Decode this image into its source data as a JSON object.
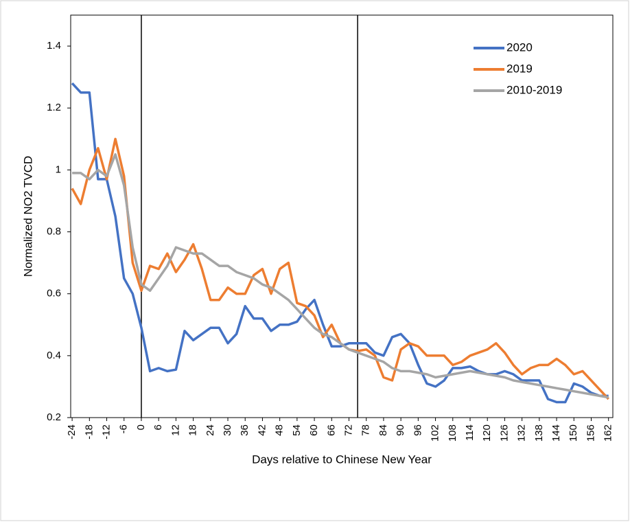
{
  "chart_data": {
    "type": "line",
    "ylabel": "Normalized NO2 TVCD",
    "xlabel": "Days relative to Chinese New Year",
    "x": [
      -24,
      -21,
      -18,
      -15,
      -12,
      -9,
      -6,
      -3,
      0,
      3,
      6,
      9,
      12,
      15,
      18,
      21,
      24,
      27,
      30,
      33,
      36,
      39,
      42,
      45,
      48,
      51,
      54,
      57,
      60,
      63,
      66,
      69,
      72,
      75,
      78,
      81,
      84,
      87,
      90,
      93,
      96,
      99,
      102,
      105,
      108,
      111,
      114,
      117,
      120,
      123,
      126,
      129,
      132,
      135,
      138,
      141,
      144,
      147,
      150,
      153,
      156,
      159,
      162
    ],
    "series": [
      {
        "name": "2020",
        "color": "#4472c4",
        "values": [
          1.28,
          1.25,
          1.25,
          0.97,
          0.97,
          0.85,
          0.65,
          0.6,
          0.49,
          0.35,
          0.36,
          0.35,
          0.355,
          0.48,
          0.45,
          0.47,
          0.49,
          0.49,
          0.44,
          0.47,
          0.56,
          0.52,
          0.52,
          0.48,
          0.5,
          0.5,
          0.51,
          0.55,
          0.58,
          0.5,
          0.43,
          0.43,
          0.44,
          0.44,
          0.44,
          0.41,
          0.4,
          0.46,
          0.47,
          0.44,
          0.37,
          0.31,
          0.3,
          0.32,
          0.36,
          0.36,
          0.365,
          0.35,
          0.34,
          0.34,
          0.35,
          0.34,
          0.32,
          0.32,
          0.32,
          0.26,
          0.25,
          0.25,
          0.31,
          0.3,
          0.28,
          0.27,
          0.27
        ]
      },
      {
        "name": "2019",
        "color": "#ed7d31",
        "values": [
          0.94,
          0.89,
          1.0,
          1.07,
          0.97,
          1.1,
          0.98,
          0.7,
          0.61,
          0.69,
          0.68,
          0.73,
          0.67,
          0.71,
          0.76,
          0.68,
          0.58,
          0.58,
          0.62,
          0.6,
          0.6,
          0.66,
          0.68,
          0.6,
          0.68,
          0.7,
          0.57,
          0.56,
          0.53,
          0.46,
          0.5,
          0.44,
          0.42,
          0.415,
          0.42,
          0.4,
          0.33,
          0.32,
          0.42,
          0.44,
          0.43,
          0.4,
          0.4,
          0.4,
          0.37,
          0.38,
          0.4,
          0.41,
          0.42,
          0.44,
          0.41,
          0.37,
          0.34,
          0.36,
          0.37,
          0.37,
          0.39,
          0.37,
          0.34,
          0.35,
          0.32,
          0.29,
          0.26
        ]
      },
      {
        "name": "2010-2019",
        "color": "#a5a5a5",
        "values": [
          0.99,
          0.99,
          0.97,
          1.0,
          0.98,
          1.05,
          0.95,
          0.75,
          0.63,
          0.61,
          0.65,
          0.69,
          0.75,
          0.74,
          0.73,
          0.73,
          0.71,
          0.69,
          0.69,
          0.67,
          0.66,
          0.65,
          0.63,
          0.62,
          0.6,
          0.58,
          0.55,
          0.52,
          0.49,
          0.47,
          0.46,
          0.44,
          0.42,
          0.41,
          0.4,
          0.39,
          0.38,
          0.36,
          0.35,
          0.35,
          0.345,
          0.34,
          0.33,
          0.335,
          0.34,
          0.345,
          0.35,
          0.345,
          0.34,
          0.335,
          0.33,
          0.32,
          0.315,
          0.31,
          0.305,
          0.3,
          0.295,
          0.29,
          0.285,
          0.28,
          0.275,
          0.27,
          0.265
        ]
      }
    ],
    "xlim": [
      -24.5,
      163.5
    ],
    "xticks": [
      -24,
      -18,
      -12,
      -6,
      0,
      6,
      12,
      18,
      24,
      30,
      36,
      42,
      48,
      54,
      60,
      66,
      72,
      78,
      84,
      90,
      96,
      102,
      108,
      114,
      120,
      126,
      132,
      138,
      144,
      150,
      156,
      162
    ],
    "ylim": [
      0.2,
      1.5
    ],
    "yticks": [
      0.2,
      0.4,
      0.6,
      0.8,
      1,
      1.2,
      1.4
    ],
    "vlines": [
      0,
      75
    ],
    "grid": false,
    "legend": "top-right"
  }
}
